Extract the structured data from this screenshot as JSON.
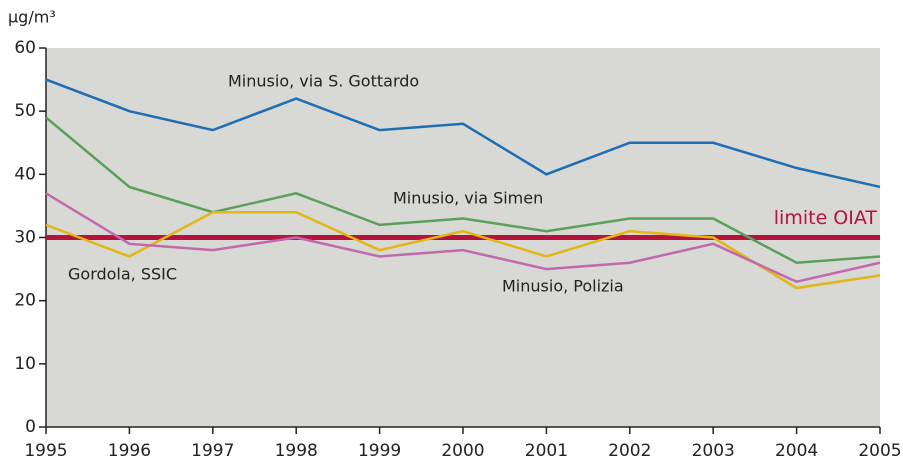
{
  "chart_data": {
    "type": "line",
    "y_label": "µg/m³",
    "x": [
      1995,
      1996,
      1997,
      1998,
      1999,
      2000,
      2001,
      2002,
      2003,
      2004,
      2005
    ],
    "xlim": [
      1995,
      2005
    ],
    "xticks": [
      1995,
      1996,
      1997,
      1998,
      1999,
      2000,
      2001,
      2002,
      2003,
      2004,
      2005
    ],
    "ylim": [
      0,
      60
    ],
    "yticks": [
      0,
      10,
      20,
      30,
      40,
      50,
      60
    ],
    "series": [
      {
        "name": "Minusio, via S. Gottardo",
        "color": "#1f6db3",
        "values": [
          55,
          50,
          47,
          52,
          47,
          48,
          40,
          45,
          45,
          41,
          38
        ]
      },
      {
        "name": "Minusio, via Simen",
        "color": "#5aa05a",
        "values": [
          49,
          38,
          34,
          37,
          32,
          33,
          31,
          33,
          33,
          26,
          27
        ]
      },
      {
        "name": "Gordola, SSIC",
        "color": "#e2b615",
        "values": [
          32,
          27,
          34,
          34,
          28,
          31,
          27,
          31,
          30,
          22,
          24
        ]
      },
      {
        "name": "Minusio, Polizia",
        "color": "#c06aad",
        "values": [
          37,
          29,
          28,
          30,
          27,
          28,
          25,
          26,
          29,
          23,
          26
        ]
      }
    ],
    "limit": {
      "label": "limite OIAT",
      "value": 30,
      "color": "#b5123e"
    }
  }
}
